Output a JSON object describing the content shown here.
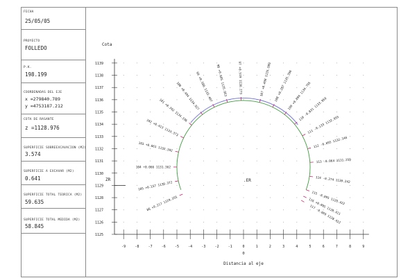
{
  "sidebar": {
    "fecha": {
      "label": "FECHA",
      "value": "25/05/05"
    },
    "proyecto": {
      "label": "PROYECTO",
      "value": "FOLLEDO"
    },
    "pk": {
      "label": "P.K.",
      "value": "198.199"
    },
    "coordenadas": {
      "label": "COORDENADAS DEL EJE",
      "x": "x =279840.789",
      "y": "y =4753187.212"
    },
    "cota_rasante": {
      "label": "COTA DE RASANTE",
      "value": "z =1128.976"
    },
    "sobreexcavacion": {
      "label": "SUPERFICIE SOBREEXCAVACION (m2)",
      "value": "3.574"
    },
    "a_excavar": {
      "label": "SUPERFICIE A EXCAVAR (m2)",
      "value": "0.641"
    },
    "total_teorica": {
      "label": "SUPERFICIE TOTAL TEORICA (m2)",
      "value": "59.635"
    },
    "total_medida": {
      "label": "SUPERFICIE TOTAL MEDIDA (m2)",
      "value": "58.845"
    }
  },
  "chart": {
    "y_title": "Cota",
    "x_title": "Distancia al eje",
    "origin_label": "0",
    "zr_label": "ZR",
    "er_label": ".ER",
    "y_ticks": [
      "1125",
      "1126",
      "1127",
      "1128",
      "1129",
      "1130",
      "1131",
      "1132",
      "1133",
      "1134",
      "1135",
      "1136",
      "1137",
      "1138",
      "1139"
    ],
    "x_ticks": [
      "-9",
      "-8",
      "-7",
      "-6",
      "-5",
      "-4",
      "-3",
      "-2",
      "-1",
      "0",
      "1",
      "2",
      "3",
      "4",
      "5",
      "6",
      "7",
      "8",
      "9"
    ],
    "colors": {
      "theoretical": "#3f9d3f",
      "measured": "#6d6dd8",
      "ticks": "#c81e6e",
      "grid": "#9a9a9a",
      "axis": "#333333"
    },
    "points": [
      {
        "text": "86 +0.217  1129.355"
      },
      {
        "text": "105 +0.157  1130.372"
      },
      {
        "text": "104 +0.066  1131.362"
      },
      {
        "text": "103 +0.061  1132.392"
      },
      {
        "text": "102 +0.413  1133.373"
      },
      {
        "text": "101 +0.392  1134.196"
      },
      {
        "text": "100 +0.494  1134.927"
      },
      {
        "text": "99 +0.580  1135.487"
      },
      {
        "text": "98 +0.605  1135.953"
      },
      {
        "text": "97 +0.519  1136.273"
      },
      {
        "text": "107 +0.498  1135.989"
      },
      {
        "text": "108 +0.287  1135.396"
      },
      {
        "text": "109 +0.094  1134.795"
      },
      {
        "text": "110 -0.031  1133.959"
      },
      {
        "text": "111 -0.133  1132.955"
      },
      {
        "text": "112 -0.095  1132.146"
      },
      {
        "text": "113 -0.064  1131.259"
      },
      {
        "text": "114 -0.274  1130.242"
      },
      {
        "text": "115 -0.095  1129.422"
      },
      {
        "text": "116 +0.095  1128.411"
      },
      {
        "text": "117 -0.069  1128.412"
      }
    ]
  }
}
